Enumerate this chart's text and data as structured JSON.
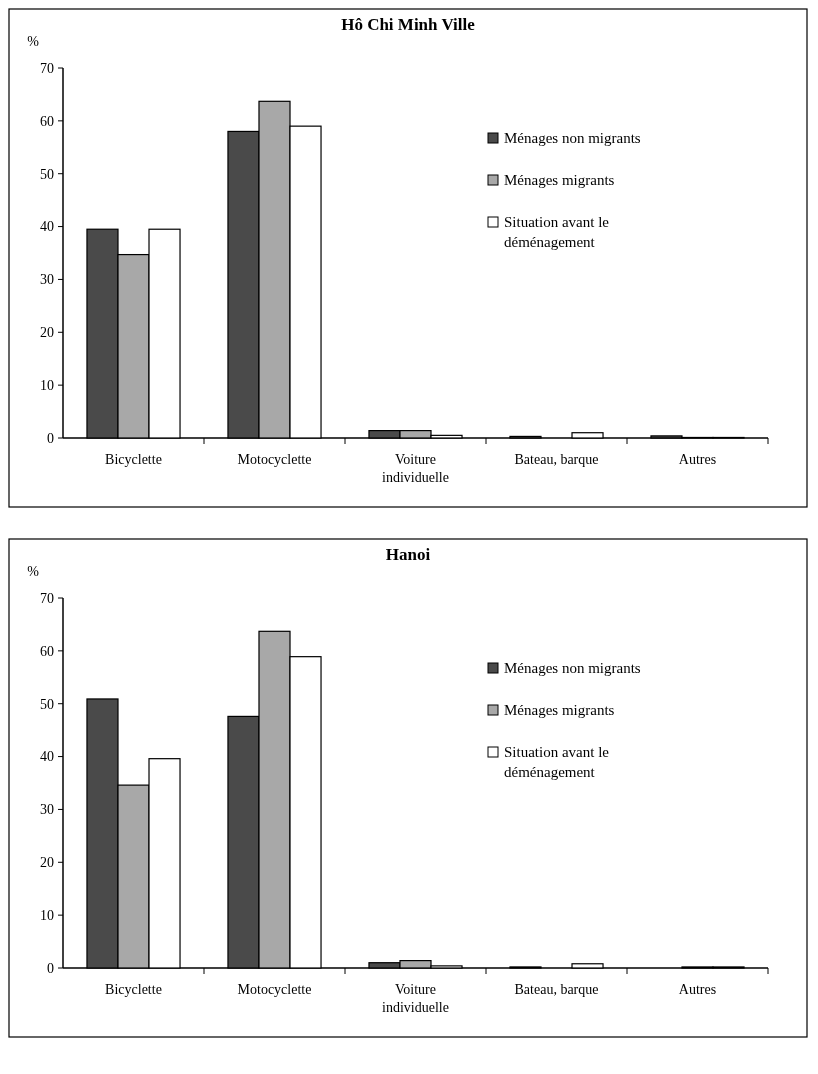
{
  "chart_data": [
    {
      "type": "bar",
      "title": "Hô Chi Minh Ville",
      "ylabel": "%",
      "categories": [
        "Bicyclette",
        "Motocyclette",
        "Voiture individuelle",
        "Bateau, barque",
        "Autres"
      ],
      "ylim": [
        0,
        70
      ],
      "yticks": [
        0,
        10,
        20,
        30,
        40,
        50,
        60,
        70
      ],
      "legend": "right",
      "series": [
        {
          "name": "Ménages non migrants",
          "color": "#4a4a4a",
          "values": [
            39.5,
            58,
            1.4,
            0.3,
            0.4
          ]
        },
        {
          "name": "Ménages migrants",
          "color": "#a8a8a8",
          "values": [
            34.7,
            63.7,
            1.4,
            0,
            0.1
          ]
        },
        {
          "name": "Situation avant le déménagement",
          "color": "#ffffff",
          "values": [
            39.5,
            59,
            0.5,
            1,
            0.1
          ]
        }
      ]
    },
    {
      "type": "bar",
      "title": "Hanoi",
      "ylabel": "%",
      "categories": [
        "Bicyclette",
        "Motocyclette",
        "Voiture individuelle",
        "Bateau, barque",
        "Autres"
      ],
      "ylim": [
        0,
        70
      ],
      "yticks": [
        0,
        10,
        20,
        30,
        40,
        50,
        60,
        70
      ],
      "legend": "right",
      "series": [
        {
          "name": "Ménages non migrants",
          "color": "#4a4a4a",
          "values": [
            50.9,
            47.6,
            1,
            0.2,
            0
          ]
        },
        {
          "name": "Ménages migrants",
          "color": "#a8a8a8",
          "values": [
            34.6,
            63.7,
            1.4,
            0,
            0.2
          ]
        },
        {
          "name": "Situation avant le déménagement",
          "color": "#ffffff",
          "values": [
            39.6,
            58.9,
            0.4,
            0.8,
            0.2
          ]
        }
      ]
    }
  ]
}
